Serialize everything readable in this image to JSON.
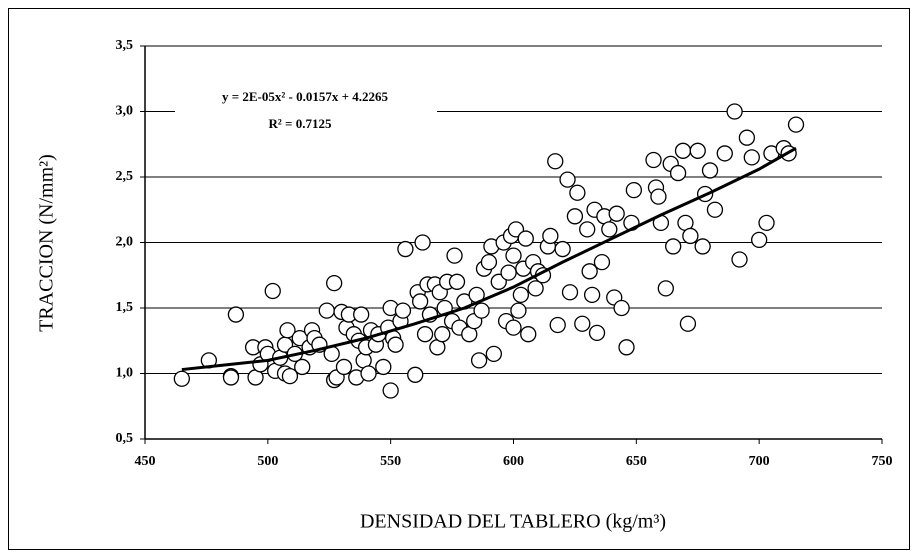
{
  "chart_data": {
    "type": "scatter",
    "equation": "y = 2E-05x² - 0.0157x + 4.2265",
    "r_squared": "R² = 0.7125",
    "xlabel": "DENSIDAD DEL TABLERO (kg/m³)",
    "ylabel": "TRACCION (N/mm²)",
    "color": "#ffffff",
    "edge_color": "#000000",
    "trend_color": "#000000",
    "xlim": [
      450,
      750
    ],
    "xticks": [
      450,
      500,
      550,
      600,
      650,
      700,
      750
    ],
    "ylim": [
      0.5,
      3.5
    ],
    "yticks": [
      {
        "value": 0.5,
        "label": "0,5"
      },
      {
        "value": 1.0,
        "label": "1,0"
      },
      {
        "value": 1.5,
        "label": "1,5"
      },
      {
        "value": 2.0,
        "label": "2,0"
      },
      {
        "value": 2.5,
        "label": "2,5"
      },
      {
        "value": 3.0,
        "label": "3,0"
      },
      {
        "value": 3.5,
        "label": "3,5"
      }
    ],
    "grid": true,
    "x": [
      465,
      476,
      485,
      485,
      487,
      494,
      495,
      497,
      499,
      500,
      502,
      503,
      505,
      507,
      507,
      508,
      509,
      511,
      513,
      514,
      517,
      518,
      519,
      521,
      524,
      526,
      527,
      527,
      528,
      530,
      531,
      532,
      533,
      535,
      536,
      537,
      538,
      539,
      540,
      541,
      542,
      544,
      545,
      547,
      549,
      550,
      550,
      551,
      552,
      554,
      555,
      556,
      560,
      561,
      562,
      563,
      564,
      565,
      566,
      568,
      569,
      570,
      571,
      572,
      573,
      575,
      576,
      577,
      578,
      580,
      582,
      584,
      585,
      586,
      587,
      588,
      590,
      591,
      592,
      594,
      596,
      597,
      598,
      599,
      600,
      600,
      601,
      602,
      603,
      604,
      605,
      606,
      608,
      609,
      610,
      612,
      614,
      615,
      617,
      618,
      620,
      622,
      623,
      625,
      626,
      628,
      630,
      631,
      632,
      633,
      634,
      636,
      637,
      639,
      641,
      642,
      644,
      646,
      648,
      649,
      657,
      658,
      659,
      660,
      662,
      664,
      665,
      667,
      669,
      670,
      671,
      672,
      675,
      677,
      678,
      680,
      682,
      686,
      690,
      692,
      695,
      697,
      700,
      703,
      705,
      710,
      712,
      715
    ],
    "values": [
      0.96,
      1.1,
      0.98,
      0.97,
      1.45,
      1.2,
      0.97,
      1.07,
      1.2,
      1.15,
      1.63,
      1.02,
      1.12,
      1.0,
      1.22,
      1.33,
      0.98,
      1.15,
      1.27,
      1.05,
      1.2,
      1.33,
      1.27,
      1.22,
      1.48,
      1.15,
      0.95,
      1.69,
      0.97,
      1.47,
      1.05,
      1.35,
      1.45,
      1.3,
      0.97,
      1.25,
      1.45,
      1.1,
      1.2,
      1.0,
      1.33,
      1.22,
      1.3,
      1.05,
      1.35,
      1.5,
      0.87,
      1.27,
      1.22,
      1.4,
      1.48,
      1.95,
      0.99,
      1.62,
      1.55,
      2.0,
      1.3,
      1.68,
      1.45,
      1.68,
      1.2,
      1.62,
      1.3,
      1.5,
      1.7,
      1.4,
      1.9,
      1.7,
      1.35,
      1.55,
      1.3,
      1.4,
      1.6,
      1.1,
      1.48,
      1.8,
      1.85,
      1.97,
      1.15,
      1.7,
      2.0,
      1.4,
      1.77,
      2.05,
      1.9,
      1.35,
      2.1,
      1.48,
      1.6,
      1.8,
      2.03,
      1.3,
      1.85,
      1.65,
      1.78,
      1.75,
      1.97,
      2.05,
      2.62,
      1.37,
      1.95,
      2.48,
      1.62,
      2.2,
      2.38,
      1.38,
      2.1,
      1.78,
      1.6,
      2.25,
      1.31,
      1.85,
      2.2,
      2.1,
      1.58,
      2.22,
      1.5,
      1.2,
      2.15,
      2.4,
      2.63,
      2.42,
      2.35,
      2.15,
      1.65,
      2.6,
      1.97,
      2.53,
      2.7,
      2.15,
      1.38,
      2.05,
      2.7,
      1.97,
      2.37,
      2.55,
      2.25,
      2.68,
      3.0,
      1.87,
      2.8,
      2.65,
      2.02,
      2.15,
      2.68,
      2.72,
      2.68,
      2.9
    ],
    "trendline": {
      "x": [
        465,
        480,
        500,
        520,
        540,
        560,
        580,
        600,
        620,
        640,
        660,
        680,
        700,
        715
      ],
      "values": [
        1.03,
        1.06,
        1.1,
        1.18,
        1.27,
        1.38,
        1.5,
        1.66,
        1.85,
        2.03,
        2.21,
        2.38,
        2.56,
        2.72
      ]
    }
  }
}
